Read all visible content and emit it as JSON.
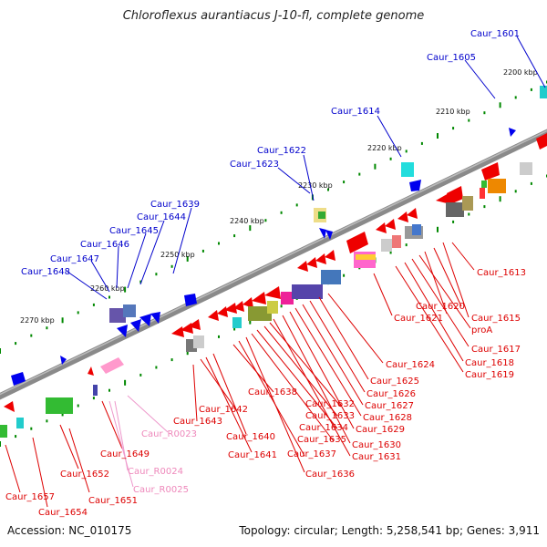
{
  "title": "Chloroflexus aurantiacus J-10-fl, complete genome",
  "footer": {
    "accession": "Accession: NC_010175",
    "topology": "Topology: circular; Length: 5,258,541 bp; Genes: 3,911"
  },
  "colors": {
    "backbone": "#888888",
    "minus_strand_labels": "#0000cc",
    "plus_strand_labels": "#dd0000",
    "rna_labels": "#ee88bb",
    "tick": "#008800"
  },
  "scale_labels": [
    "2200 kbp",
    "2210 kbp",
    "2220 kbp",
    "2230 kbp",
    "2240 kbp",
    "2250 kbp",
    "2260 kbp",
    "2270 kbp"
  ],
  "upper_gene_labels": [
    "Caur_1601",
    "Caur_1605",
    "Caur_1614",
    "Caur_1622",
    "Caur_1623",
    "Caur_1639",
    "Caur_1644",
    "Caur_1645",
    "Caur_1646",
    "Caur_1647",
    "Caur_1648"
  ],
  "lower_gene_labels": [
    "Caur_1613",
    "Caur_1620",
    "Caur_1615",
    "Caur_1621",
    "proA",
    "Caur_1617",
    "Caur_1618",
    "Caur_1619",
    "Caur_1624",
    "Caur_1625",
    "Caur_1626",
    "Caur_1627",
    "Caur_1628",
    "Caur_1629",
    "Caur_1630",
    "Caur_1631",
    "Caur_1632",
    "Caur_1633",
    "Caur_1634",
    "Caur_1635",
    "Caur_1636",
    "Caur_1637",
    "Caur_1638",
    "Caur_1640",
    "Caur_1641",
    "Caur_1642",
    "Caur_1643",
    "Caur_1649",
    "Caur_1652",
    "Caur_1651",
    "Caur_1654",
    "Caur_1657"
  ],
  "rna_labels": [
    "Caur_R0023",
    "Caur_R0024",
    "Caur_R0025"
  ]
}
